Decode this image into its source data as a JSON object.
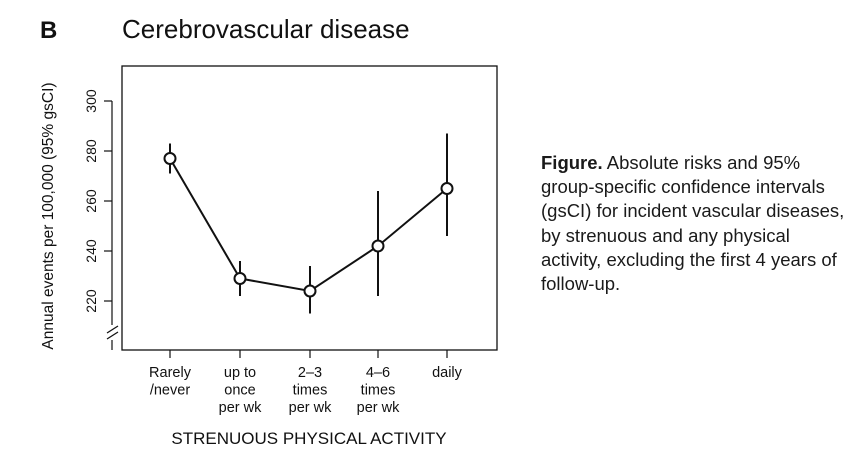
{
  "panel_label": "B",
  "caption": {
    "bold": "Figure.",
    "text": "Absolute risks and 95% group-specific confidence intervals (gsCI) for incident vascular diseases, by strenuous and any physical activity, excluding the first 4 years of follow-up."
  },
  "chart_data": {
    "type": "line",
    "title": "Cerebrovascular disease",
    "xlabel": "STRENUOUS PHYSICAL ACTIVITY",
    "ylabel": "Annual events per 100,000 (95% gsCI)",
    "categories": [
      [
        "Rarely",
        "/never"
      ],
      [
        "up to",
        "once",
        "per wk"
      ],
      [
        "2–3",
        "times",
        "per wk"
      ],
      [
        "4–6",
        "times",
        "per wk"
      ],
      [
        "daily"
      ]
    ],
    "series": [
      {
        "name": "Cerebrovascular disease",
        "values": [
          277,
          229,
          224,
          242,
          265
        ],
        "ci_low": [
          271,
          222,
          215,
          222,
          246
        ],
        "ci_high": [
          283,
          236,
          234,
          264,
          287
        ]
      }
    ],
    "yticks": [
      220,
      240,
      260,
      280,
      300
    ],
    "ylim": [
      200,
      315
    ],
    "axis_break": true,
    "grid": false
  }
}
